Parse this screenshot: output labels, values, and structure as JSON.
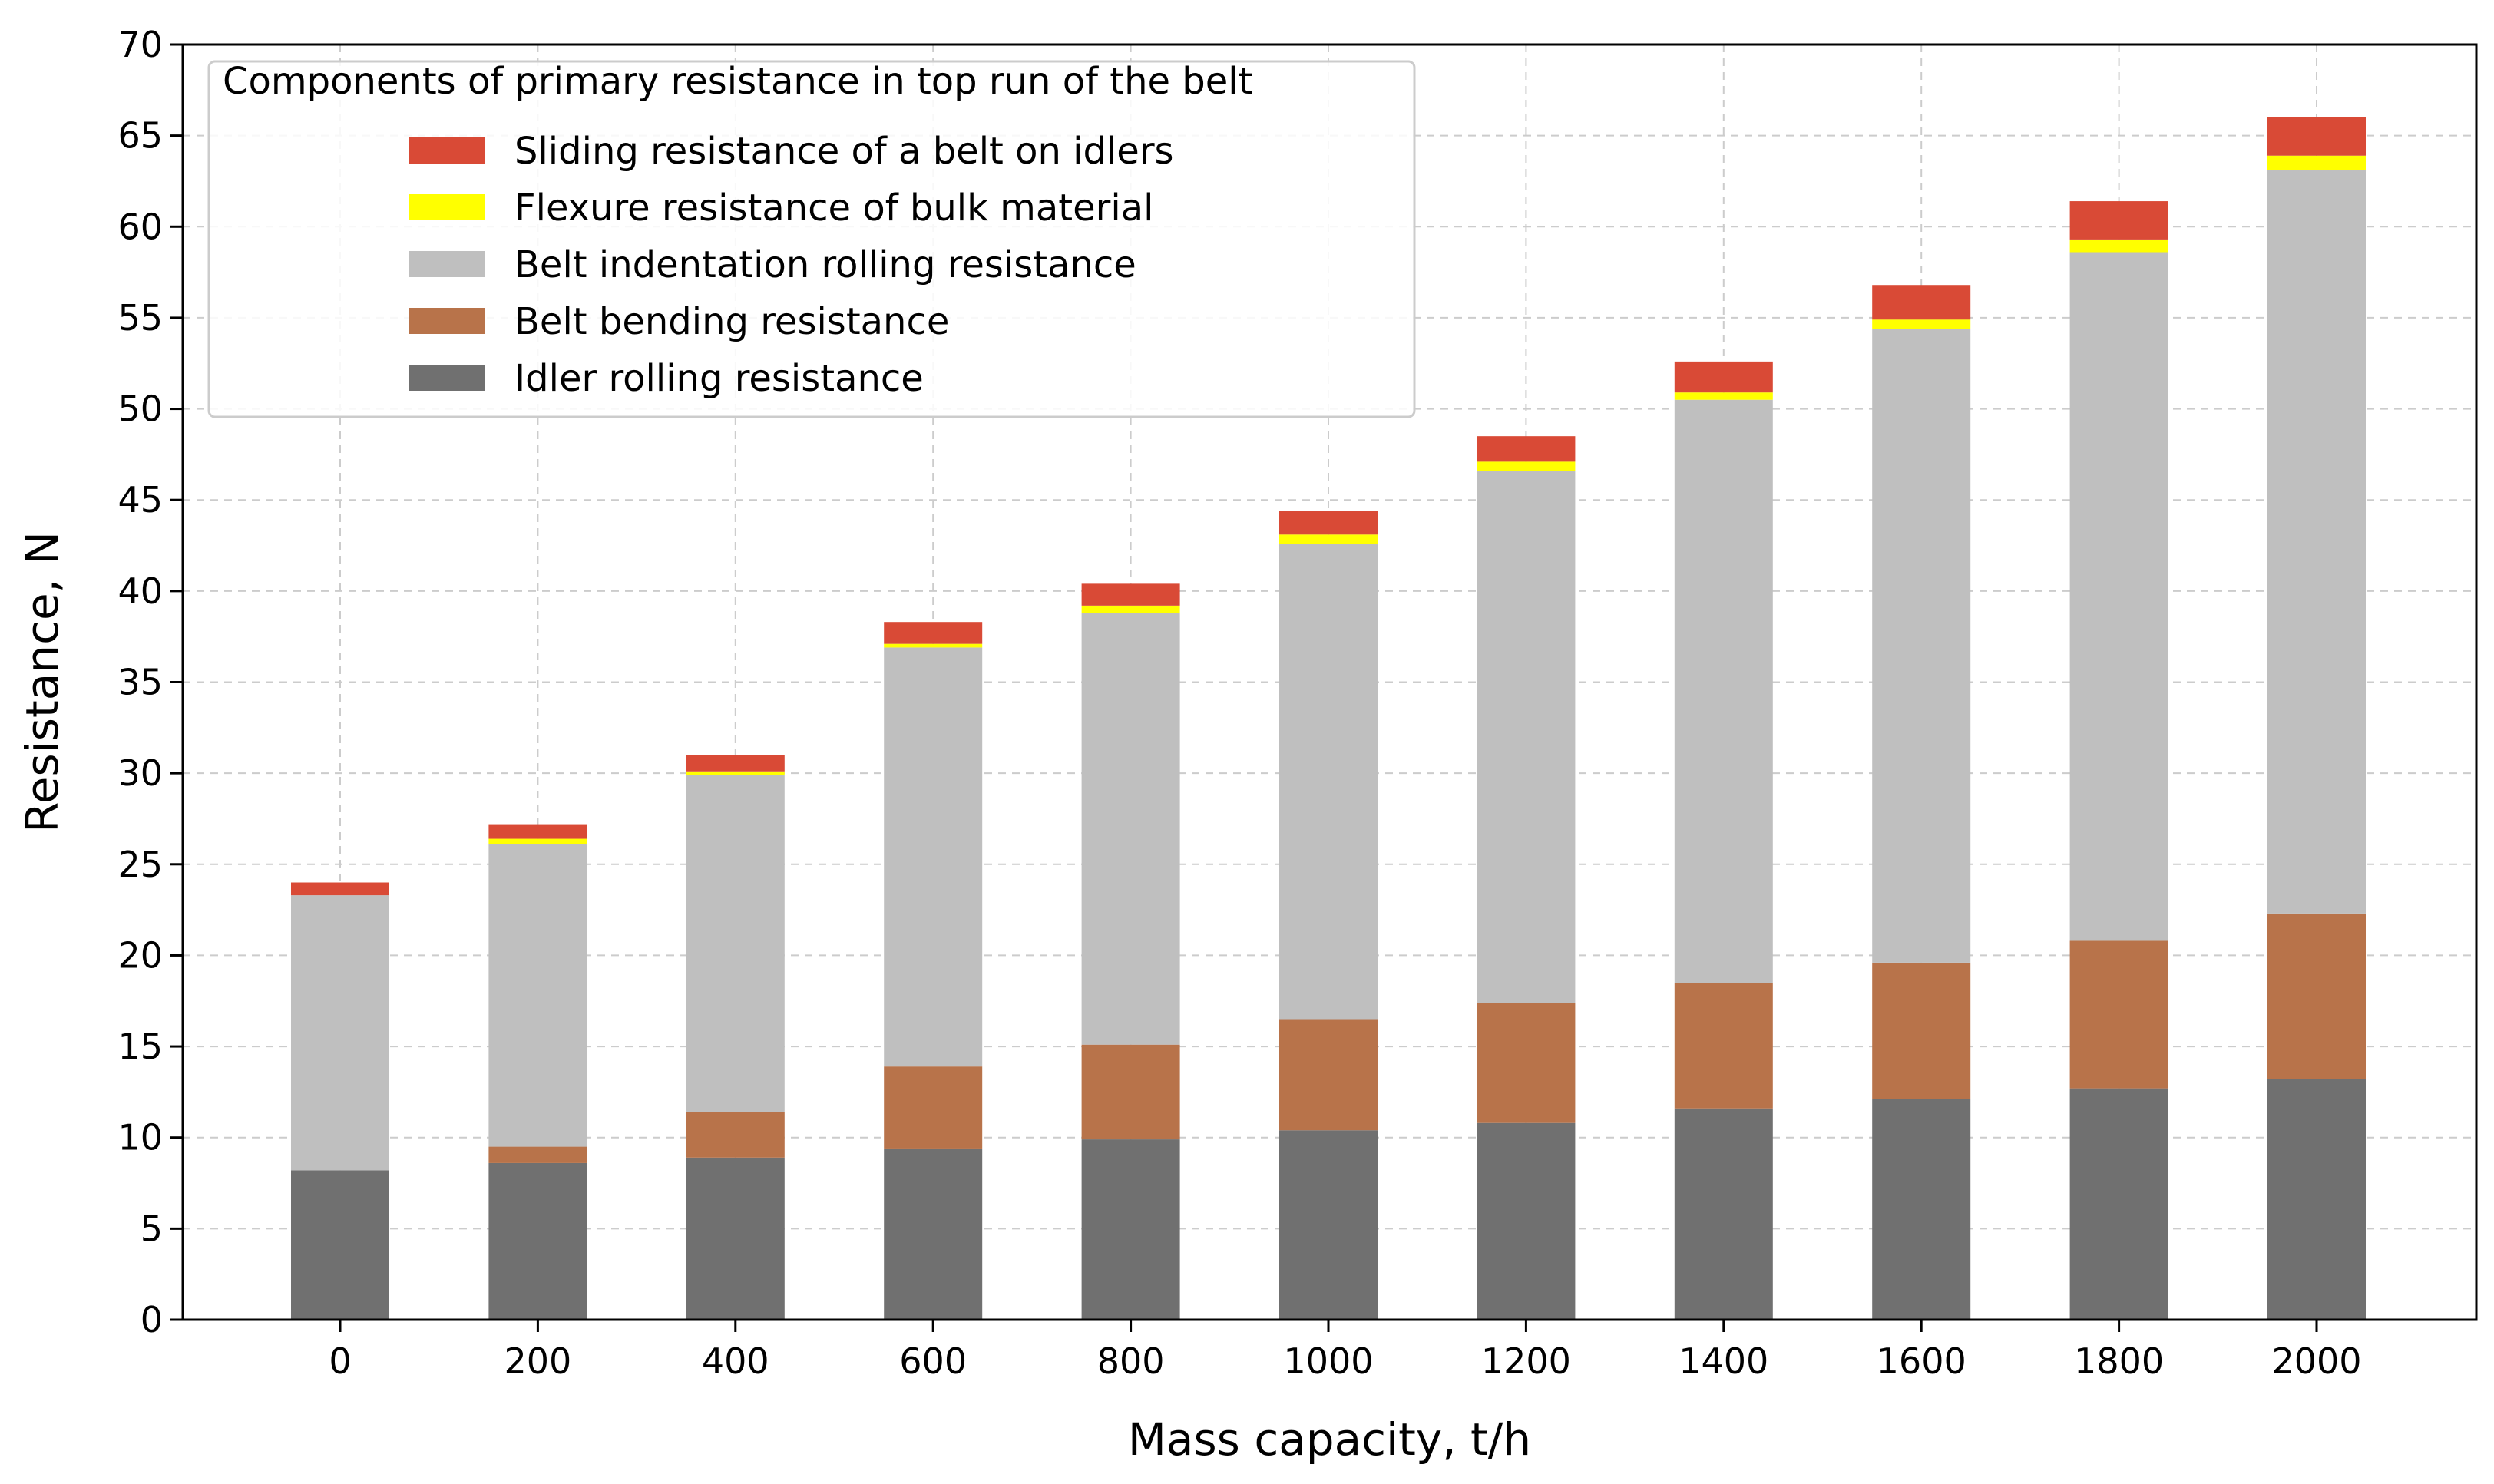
{
  "chart_data": {
    "type": "bar",
    "stacked": true,
    "title": "",
    "xlabel": "Mass capacity, t/h",
    "ylabel": "Resistance, N",
    "ylim": [
      0,
      70
    ],
    "yticks": [
      0,
      5,
      10,
      15,
      20,
      25,
      30,
      35,
      40,
      45,
      50,
      55,
      60,
      65,
      70
    ],
    "categories": [
      "0",
      "200",
      "400",
      "600",
      "800",
      "1000",
      "1200",
      "1400",
      "1600",
      "1800",
      "2000"
    ],
    "grid": true,
    "legend_position": "top-left",
    "legend_title": "Components of primary resistance in top run of the belt",
    "series": [
      {
        "name": "Idler rolling resistance",
        "color": "#707070",
        "values": [
          8.2,
          8.6,
          8.9,
          9.4,
          9.9,
          10.4,
          10.8,
          11.6,
          12.1,
          12.7,
          13.2
        ]
      },
      {
        "name": "Belt bending resistance",
        "color": "#b8734a",
        "values": [
          0.0,
          0.9,
          2.5,
          4.5,
          5.2,
          6.1,
          6.6,
          6.9,
          7.5,
          8.1,
          9.1
        ]
      },
      {
        "name": "Belt indentation rolling resistance",
        "color": "#bfbfbf",
        "values": [
          15.1,
          16.6,
          18.5,
          23.0,
          23.7,
          26.1,
          29.2,
          32.0,
          34.8,
          37.8,
          40.8
        ]
      },
      {
        "name": "Flexure resistance of bulk material",
        "color": "#ffff00",
        "values": [
          0.0,
          0.3,
          0.2,
          0.2,
          0.4,
          0.5,
          0.5,
          0.4,
          0.5,
          0.7,
          0.8
        ]
      },
      {
        "name": "Sliding resistance of a belt on idlers",
        "color": "#d94a36",
        "values": [
          0.7,
          0.8,
          0.9,
          1.2,
          1.2,
          1.3,
          1.4,
          1.7,
          1.9,
          2.1,
          2.1
        ]
      }
    ]
  }
}
